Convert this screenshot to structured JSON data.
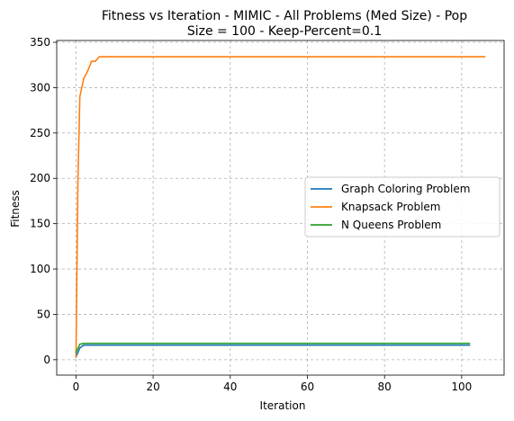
{
  "chart_data": {
    "type": "line",
    "title_lines": [
      "Fitness vs Iteration - MIMIC - All Problems (Med Size) - Pop",
      "Size = 100 - Keep-Percent=0.1"
    ],
    "xlabel": "Iteration",
    "ylabel": "Fitness",
    "xlim": [
      -5,
      111
    ],
    "ylim": [
      -17,
      352
    ],
    "x_ticks": [
      0,
      20,
      40,
      60,
      80,
      100
    ],
    "y_ticks": [
      0,
      50,
      100,
      150,
      200,
      250,
      300,
      350
    ],
    "grid": true,
    "legend_position": "center-right",
    "series": [
      {
        "name": "Graph Coloring Problem",
        "color": "#1f77b4",
        "x": [
          0,
          1,
          2,
          3,
          102
        ],
        "y": [
          3,
          13,
          16,
          16,
          16
        ]
      },
      {
        "name": "Knapsack Problem",
        "color": "#ff7f0e",
        "x": [
          0,
          0.5,
          1,
          2,
          3,
          4,
          5,
          6,
          7,
          106
        ],
        "y": [
          3,
          200,
          290,
          310,
          318,
          329,
          329,
          334,
          334,
          334
        ]
      },
      {
        "name": "N Queens Problem",
        "color": "#2ca02c",
        "x": [
          0,
          1,
          2,
          3,
          102
        ],
        "y": [
          8,
          17,
          18,
          18,
          18
        ]
      }
    ]
  }
}
